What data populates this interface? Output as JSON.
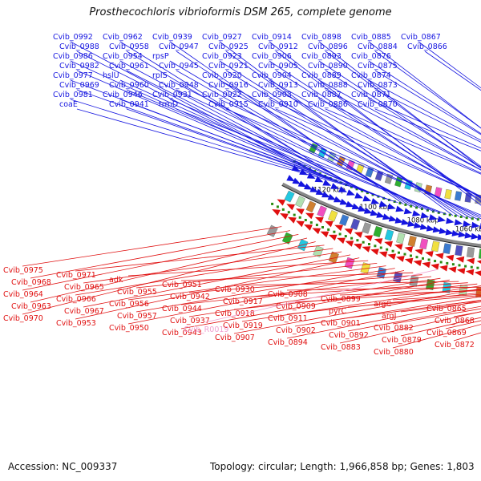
{
  "title": "Prosthecochloris vibrioformis DSM 265, complete genome",
  "accession": "Accession: NC_009337",
  "summary": "Topology: circular; Length: 1,966,858 bp; Genes: 1,803",
  "colors": {
    "forward_strand": "#1515e0",
    "reverse_strand": "#e01010",
    "rna": "#f0a0d0",
    "tick": "#2a8a10",
    "backbone": "#888888"
  },
  "kbp_ticks": [
    "1120 kbp",
    "1100 kbp",
    "1080 kbp",
    "1060 kbp",
    "1040 kbp",
    "1020 kbp",
    "1000 kbp",
    "980 kbp"
  ],
  "forward_labels": [
    "Cvib_0992",
    "Cvib_0988",
    "Cvib_0986",
    "Cvib_0982",
    "Cvib_0977",
    "Cvib_0969",
    "Cvib_0981",
    "coaE",
    "Cvib_0962",
    "Cvib_0958",
    "Cvib_0954",
    "Cvib_0961",
    "hslU",
    "Cvib_0960",
    "Cvib_0946",
    "Cvib_0941",
    "Cvib_0939",
    "Cvib_0947",
    "rpsP",
    "Cvib_0945",
    "rplS",
    "Cvib_0948",
    "Cvib_0931",
    "trmD",
    "Cvib_0927",
    "Cvib_0925",
    "Cvib_0923",
    "Cvib_0921",
    "Cvib_0920",
    "Cvib_0916",
    "Cvib_0922",
    "Cvib_0915",
    "Cvib_0914",
    "Cvib_0912",
    "Cvib_0906",
    "Cvib_0905",
    "Cvib_0904",
    "Cvib_0913",
    "Cvib_0903",
    "Cvib_0910",
    "Cvib_0898",
    "Cvib_0896",
    "Cvib_0893",
    "Cvib_0890",
    "Cvib_0889",
    "Cvib_0888",
    "Cvib_0887",
    "Cvib_0886",
    "Cvib_0885",
    "Cvib_0884",
    "Cvib_0876",
    "Cvib_0875",
    "Cvib_0874",
    "Cvib_0873",
    "Cvib_0871",
    "Cvib_0870",
    "Cvib_0867",
    "Cvib_0866"
  ],
  "reverse_labels": [
    "Cvib_0975",
    "Cvib_0968",
    "Cvib_0964",
    "Cvib_0963",
    "Cvib_0970",
    "Cvib_0971",
    "Cvib_0965",
    "Cvib_0966",
    "Cvib_0967",
    "Cvib_0953",
    "adk",
    "Cvib_0955",
    "Cvib_0956",
    "Cvib_0957",
    "Cvib_0950",
    "Cvib_0951",
    "Cvib_0942",
    "Cvib_0944",
    "Cvib_0937",
    "Cvib_0943",
    "Cvib_0930",
    "Cvib_0917",
    "Cvib_0918",
    "Cvib_0919",
    "Cvib_0907",
    "Cvib_0908",
    "Cvib_0909",
    "Cvib_0911",
    "Cvib_0902",
    "Cvib_0894",
    "Cvib_0899",
    "pyrC",
    "Cvib_0901",
    "Cvib_0892",
    "Cvib_0883",
    "argC",
    "argJ",
    "Cvib_0882",
    "Cvib_0879",
    "Cvib_0880",
    "Cvib_0865",
    "Cvib_0868",
    "Cvib_0869",
    "Cvib_0872"
  ],
  "rna_labels": [
    "Cvib_R0019"
  ]
}
